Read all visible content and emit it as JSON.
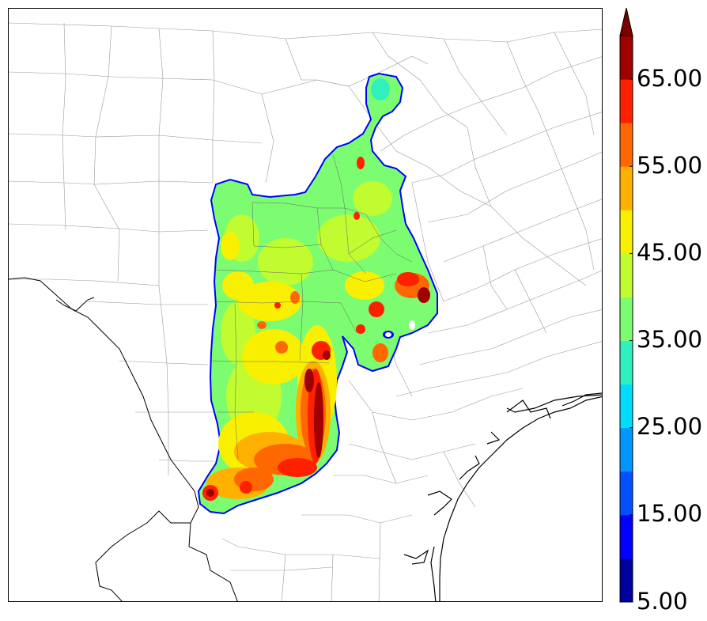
{
  "colorbar": {
    "labels": [
      "65.00",
      "55.00",
      "45.00",
      "35.00",
      "25.00",
      "15.00",
      "5.00"
    ],
    "colors": [
      "#00009f",
      "#0000ff",
      "#0050ff",
      "#0096ff",
      "#00dcff",
      "#30f0c0",
      "#7cfc70",
      "#c0fc30",
      "#f8f000",
      "#ffb000",
      "#ff6800",
      "#ff2000",
      "#a00000",
      "#7a0000"
    ],
    "extend": "max"
  }
}
